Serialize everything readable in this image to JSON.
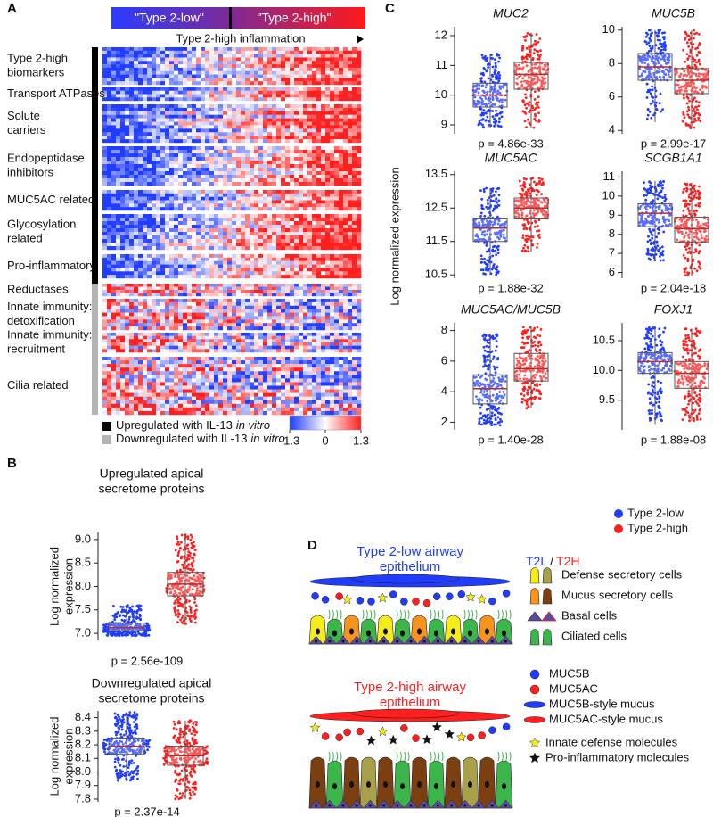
{
  "panel_labels": {
    "a": "A",
    "b": "B",
    "c": "C",
    "d": "D"
  },
  "panel_a": {
    "bar_labels": [
      "\"Type 2-low\"",
      "\"Type 2-high\""
    ],
    "arrow_label": "Type 2-high inflammation",
    "groups": [
      {
        "lines": [
          "Type 2-high",
          "biomarkers"
        ],
        "direction": "up"
      },
      {
        "lines": [
          "Transport ATPases"
        ],
        "direction": "up"
      },
      {
        "lines": [
          "Solute",
          "carriers"
        ],
        "direction": "up"
      },
      {
        "lines": [
          "Endopeptidase",
          "inhibitors"
        ],
        "direction": "up"
      },
      {
        "lines": [
          "MUC5AC related"
        ],
        "direction": "up"
      },
      {
        "lines": [
          "Glycosylation",
          "related"
        ],
        "direction": "up"
      },
      {
        "lines": [
          "Pro-inflammatory"
        ],
        "direction": "up"
      },
      {
        "lines": [
          "Reductases"
        ],
        "direction": "down"
      },
      {
        "lines": [
          "Innate immunity:",
          "detoxification"
        ],
        "direction": "down"
      },
      {
        "lines": [
          "Innate immunity:",
          "recruitment"
        ],
        "direction": "down"
      },
      {
        "lines": [
          "Cilia related"
        ],
        "direction": "down"
      }
    ],
    "legend": [
      {
        "text": "Upregulated with IL-13",
        "italic": "in vitro",
        "color": "#000000"
      },
      {
        "text": "Downregulated with IL-13",
        "italic": "in vitro",
        "color": "#b3b3b3"
      }
    ],
    "colorlim": [
      -1.3,
      1.3
    ],
    "colorticks": [
      -1.3,
      0,
      1.3
    ]
  },
  "panel_b": {
    "ylabel_lines": [
      "Log normalized",
      "expression"
    ],
    "plots": [
      {
        "title_lines": [
          "Upregulated apical",
          "secretome proteins"
        ],
        "ylim": [
          6.85,
          9.15
        ],
        "yticks": [
          {
            "value": 7,
            "label": "7.0"
          },
          7.5,
          {
            "value": 8,
            "label": "8.0"
          },
          8.5,
          {
            "value": 9,
            "label": "9.0"
          }
        ],
        "p": "p = 2.56e-109",
        "boxes": [
          {
            "color": "#1f3cff",
            "whiskers": [
              6.95,
              7.6
            ],
            "quartiles": [
              7.05,
              7.22
            ],
            "median": 7.12
          },
          {
            "color": "#ff1f1f",
            "whiskers": [
              7.2,
              9.1
            ],
            "quartiles": [
              7.8,
              8.3
            ],
            "median": 8.05
          }
        ]
      },
      {
        "title_lines": [
          "Downregulated apical",
          "secretome proteins"
        ],
        "ylim": [
          7.78,
          8.45
        ],
        "yticks": [
          7.8,
          7.9,
          {
            "value": 8,
            "label": "8.0"
          },
          8.1,
          8.2,
          8.3,
          8.4
        ],
        "p": "p = 2.37e-14",
        "boxes": [
          {
            "color": "#1f3cff",
            "whiskers": [
              7.93,
              8.44
            ],
            "quartiles": [
              8.13,
              8.25
            ],
            "median": 8.19
          },
          {
            "color": "#ff1f1f",
            "whiskers": [
              7.8,
              8.38
            ],
            "quartiles": [
              8.05,
              8.19
            ],
            "median": 8.12
          }
        ]
      }
    ]
  },
  "panel_c": {
    "ylabel": "Log normalized expression",
    "plots": [
      {
        "title": "MUC2",
        "ylim": [
          8.7,
          12.3
        ],
        "yticks": [
          9,
          10,
          11,
          12
        ],
        "p": "p = 4.86e-33",
        "boxes": [
          {
            "color": "#1f3cff",
            "whiskers": [
              8.9,
              11.4
            ],
            "quartiles": [
              9.6,
              10.4
            ],
            "median": 10.0
          },
          {
            "color": "#ff1f1f",
            "whiskers": [
              8.9,
              12.1
            ],
            "quartiles": [
              10.2,
              11.1
            ],
            "median": 10.7
          }
        ]
      },
      {
        "title": "MUC5B",
        "ylim": [
          3.8,
          10.2
        ],
        "yticks": [
          4,
          6,
          8,
          10
        ],
        "p": "p = 2.99e-17",
        "boxes": [
          {
            "color": "#1f3cff",
            "whiskers": [
              4.5,
              10
            ],
            "quartiles": [
              7.0,
              8.6
            ],
            "median": 7.8
          },
          {
            "color": "#ff1f1f",
            "whiskers": [
              4.1,
              10
            ],
            "quartiles": [
              6.2,
              7.7
            ],
            "median": 7.0
          }
        ]
      },
      {
        "title": "MUC5AC",
        "ylim": [
          10.4,
          13.6
        ],
        "yticks": [
          10.5,
          11.5,
          12.5,
          13.5
        ],
        "p": "p = 1.88e-32",
        "boxes": [
          {
            "color": "#1f3cff",
            "whiskers": [
              10.5,
              13.1
            ],
            "quartiles": [
              11.5,
              12.2
            ],
            "median": 11.9
          },
          {
            "color": "#ff1f1f",
            "whiskers": [
              11.2,
              13.4
            ],
            "quartiles": [
              12.2,
              12.8
            ],
            "median": 12.5
          }
        ]
      },
      {
        "title": "SCGB1A1",
        "ylim": [
          5.7,
          11.3
        ],
        "yticks": [
          6,
          7,
          8,
          9,
          10,
          11
        ],
        "p": "p = 2.04e-18",
        "boxes": [
          {
            "color": "#1f3cff",
            "whiskers": [
              6.6,
              10.8
            ],
            "quartiles": [
              8.4,
              9.6
            ],
            "median": 9.1
          },
          {
            "color": "#ff1f1f",
            "whiskers": [
              5.8,
              10.7
            ],
            "quartiles": [
              7.6,
              8.9
            ],
            "median": 8.3
          }
        ]
      },
      {
        "title": "MUC5AC/MUC5B",
        "ylim": [
          1.5,
          8.5
        ],
        "yticks": [
          2,
          4,
          6,
          8
        ],
        "p": "p = 1.40e-28",
        "boxes": [
          {
            "color": "#1f3cff",
            "whiskers": [
              1.8,
              7.8
            ],
            "quartiles": [
              3.2,
              5.1
            ],
            "median": 4.2
          },
          {
            "color": "#ff1f1f",
            "whiskers": [
              2.9,
              8.3
            ],
            "quartiles": [
              4.7,
              6.5
            ],
            "median": 5.5
          }
        ]
      },
      {
        "title": "FOXJ1",
        "ylim": [
          9.0,
          10.8
        ],
        "yticks": [
          9.5,
          {
            "value": 10,
            "label": "10.0"
          },
          10.5
        ],
        "p": "p = 1.88e-08",
        "boxes": [
          {
            "color": "#1f3cff",
            "whiskers": [
              9.1,
              10.75
            ],
            "quartiles": [
              9.95,
              10.3
            ],
            "median": 10.15
          },
          {
            "color": "#ff1f1f",
            "whiskers": [
              9.15,
              10.7
            ],
            "quartiles": [
              9.7,
              10.15
            ],
            "median": 9.95
          }
        ]
      }
    ],
    "legend": [
      {
        "name": "Type 2-low",
        "color": "#1f3cff"
      },
      {
        "name": "Type 2-high",
        "color": "#ff1f1f"
      }
    ]
  },
  "panel_d": {
    "low_title_lines": [
      "Type 2-low airway",
      "epithelium"
    ],
    "high_title_lines": [
      "Type 2-high airway",
      "epithelium"
    ],
    "key_header": {
      "low": "T2L",
      "sep": "/",
      "high": "T2H"
    },
    "cell_key": [
      "Defense secretory cells",
      "Mucus secretory cells",
      "Basal cells",
      "Ciliated cells"
    ],
    "molecule_key": [
      "MUC5B",
      "MUC5AC",
      "MUC5B-style mucus",
      "MUC5AC-style mucus",
      "Innate defense molecules",
      "Pro-inflammatory molecules"
    ]
  }
}
